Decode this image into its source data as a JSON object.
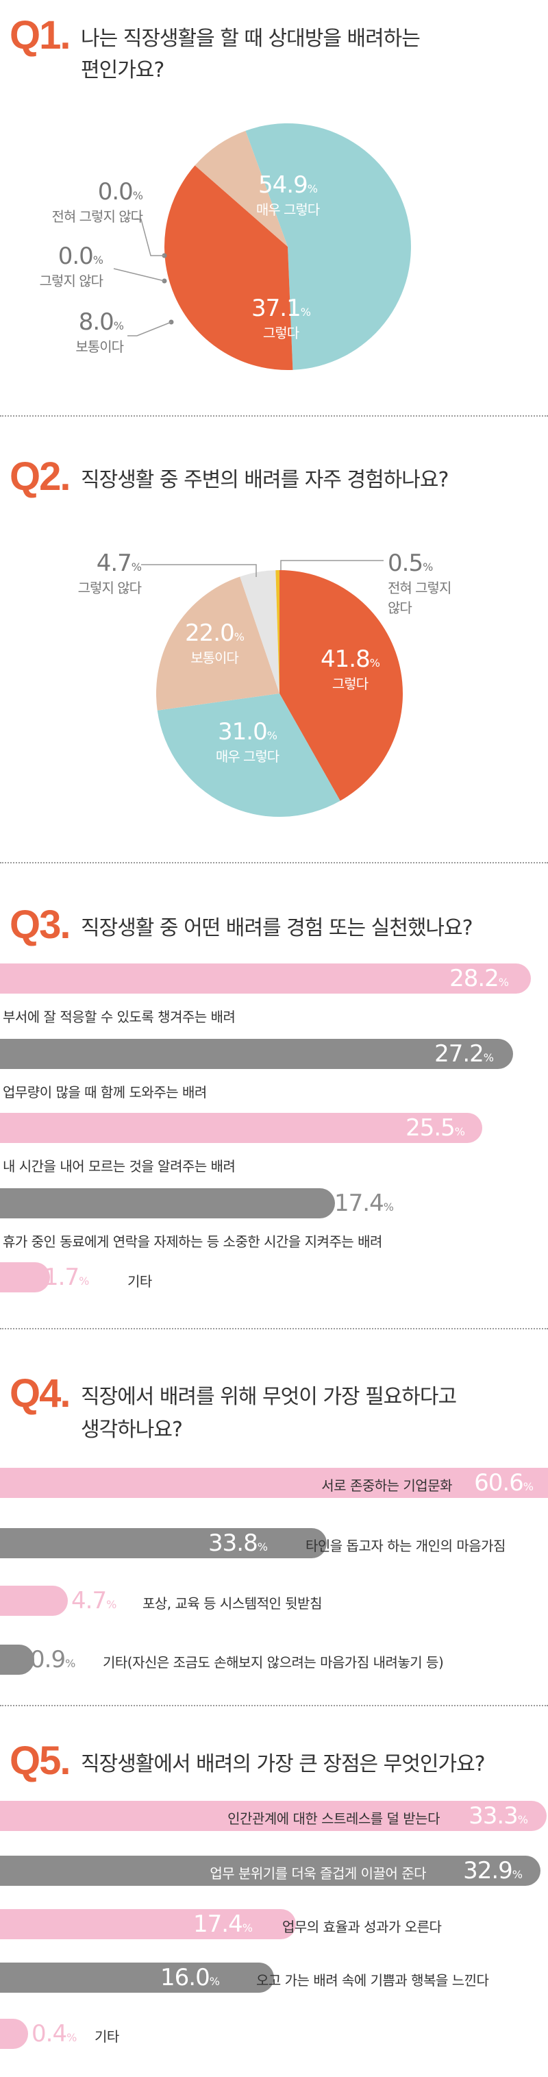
{
  "colors": {
    "orange": "#e8623a",
    "teal": "#9bd3d5",
    "beige": "#e7c1a8",
    "lightgray": "#e5e5e5",
    "pink": "#f5bcd1",
    "gray": "#8c8c8c",
    "yellow": "#f0c22b"
  },
  "q1": {
    "num": "Q1.",
    "title_line1": "나는 직장생활을 할 때 상대방을 배려하는",
    "title_line2": "편인가요?"
  },
  "q2": {
    "num": "Q2.",
    "title": "직장생활 중 주변의 배려를 자주 경험하나요?"
  },
  "q3": {
    "num": "Q3.",
    "title": "직장생활 중 어떤 배려를 경험 또는 실천했나요?"
  },
  "q4": {
    "num": "Q4.",
    "title_line1": "직장에서 배려를 위해 무엇이 가장 필요하다고",
    "title_line2": "생각하나요?"
  },
  "q5": {
    "num": "Q5.",
    "title": "직장생활에서 배려의 가장 큰 장점은 무엇인가요?"
  },
  "chart_data": [
    {
      "type": "pie",
      "series": [
        {
          "name": "매우 그렇다",
          "value": 54.9
        },
        {
          "name": "그렇다",
          "value": 37.1
        },
        {
          "name": "보통이다",
          "value": 8.0
        },
        {
          "name": "그렇지 않다",
          "value": 0.0
        },
        {
          "name": "전혀 그렇지 않다",
          "value": 0.0
        }
      ],
      "value_texts": [
        "54.9",
        "37.1",
        "8.0",
        "0.0",
        "0.0"
      ],
      "unit": "%"
    },
    {
      "type": "pie",
      "series": [
        {
          "name": "그렇다",
          "value": 41.8
        },
        {
          "name": "매우 그렇다",
          "value": 31.0
        },
        {
          "name": "보통이다",
          "value": 22.0
        },
        {
          "name": "그렇지 않다",
          "value": 4.7
        },
        {
          "name": "전혀 그렇지 않다",
          "value": 0.5
        }
      ],
      "value_texts": [
        "41.8",
        "31.0",
        "22.0",
        "4.7",
        "0.5"
      ],
      "name_lines": {
        "전혀 그렇지 않다": [
          "전혀 그렇지",
          "않다"
        ]
      },
      "unit": "%"
    },
    {
      "type": "bar",
      "categories": [
        "부서에 잘 적응할 수 있도록 챙겨주는 배려",
        "업무량이 많을 때 함께 도와주는 배려",
        "내 시간을 내어 모르는 것을 알려주는 배려",
        "휴가 중인 동료에게 연락을 자제하는 등 소중한 시간을 지켜주는 배려",
        "기타"
      ],
      "values": [
        28.2,
        27.2,
        25.5,
        17.4,
        1.7
      ],
      "value_texts": [
        "28.2",
        "27.2",
        "25.5",
        "17.4",
        "1.7"
      ],
      "unit": "%"
    },
    {
      "type": "bar",
      "categories": [
        "서로 존중하는 기업문화",
        "타인을 돕고자 하는 개인의 마음가짐",
        "포상, 교육 등 시스템적인 뒷받침",
        "기타(자신은 조금도 손해보지 않으려는 마음가짐 내려놓기 등)"
      ],
      "values": [
        60.6,
        33.8,
        4.7,
        0.9
      ],
      "value_texts": [
        "60.6",
        "33.8",
        "4.7",
        "0.9"
      ],
      "unit": "%"
    },
    {
      "type": "bar",
      "categories": [
        "인간관계에 대한 스트레스를 덜 받는다",
        "업무 분위기를 더욱 즐겁게 이끌어 준다",
        "업무의 효율과 성과가 오른다",
        "오고 가는 배려 속에 기쁨과 행복을 느낀다",
        "기타"
      ],
      "values": [
        33.3,
        32.9,
        17.4,
        16.0,
        0.4
      ],
      "value_texts": [
        "33.3",
        "32.9",
        "17.4",
        "16.0",
        "0.4"
      ],
      "unit": "%"
    }
  ]
}
